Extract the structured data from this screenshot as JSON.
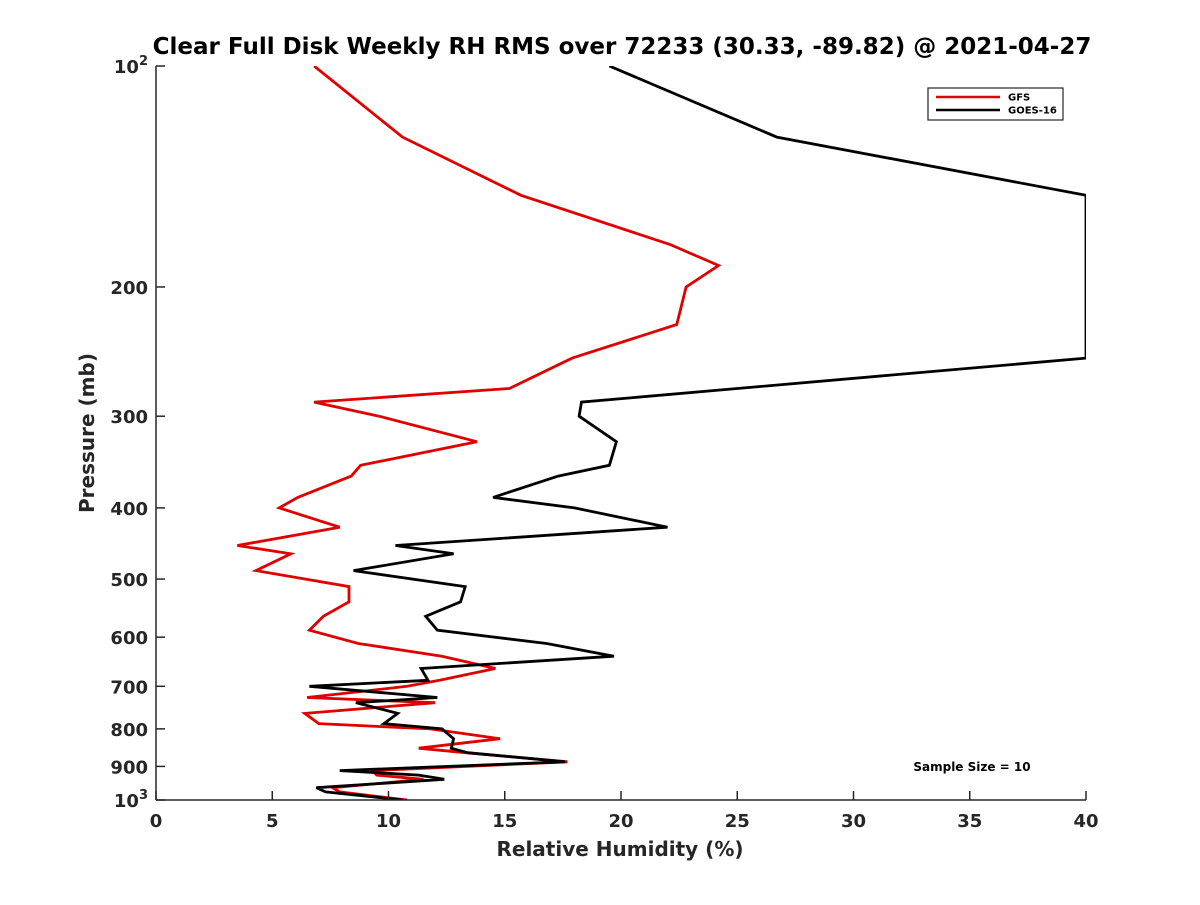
{
  "chart_data": {
    "type": "line",
    "title": "Clear Full Disk Weekly RH RMS over 72233 (30.33, -89.82) @ 2021-04-27",
    "xlabel": "Relative Humidity (%)",
    "ylabel": "Pressure (mb)",
    "xlim": [
      0,
      40
    ],
    "ylim": [
      100,
      1000
    ],
    "y_scale": "log",
    "y_reversed": true,
    "x_ticks": [
      "0",
      "5",
      "10",
      "15",
      "20",
      "25",
      "30",
      "35",
      "40"
    ],
    "y_ticks": [
      {
        "value": 100,
        "base": "10",
        "exp": "2"
      },
      {
        "value": 200,
        "label": "200"
      },
      {
        "value": 300,
        "label": "300"
      },
      {
        "value": 400,
        "label": "400"
      },
      {
        "value": 500,
        "label": "500"
      },
      {
        "value": 600,
        "label": "600"
      },
      {
        "value": 700,
        "label": "700"
      },
      {
        "value": 800,
        "label": "800"
      },
      {
        "value": 900,
        "label": "900"
      },
      {
        "value": 1000,
        "base": "10",
        "exp": "3"
      }
    ],
    "legend_position": "top-right",
    "annotation": "Sample Size = 10",
    "series": [
      {
        "name": "GFS",
        "color": "#e00000",
        "points": [
          [
            6.8,
            100
          ],
          [
            10.6,
            125
          ],
          [
            15.7,
            150
          ],
          [
            22.1,
            175
          ],
          [
            24.2,
            187
          ],
          [
            22.8,
            200
          ],
          [
            22.4,
            225
          ],
          [
            17.9,
            250
          ],
          [
            15.2,
            275
          ],
          [
            6.8,
            287
          ],
          [
            9.6,
            300
          ],
          [
            13.8,
            325
          ],
          [
            8.8,
            350
          ],
          [
            8.4,
            362
          ],
          [
            6.1,
            387
          ],
          [
            5.3,
            400
          ],
          [
            7.9,
            425
          ],
          [
            3.5,
            450
          ],
          [
            5.8,
            462
          ],
          [
            4.3,
            487
          ],
          [
            8.3,
            512
          ],
          [
            8.3,
            537
          ],
          [
            7.2,
            562
          ],
          [
            6.6,
            587
          ],
          [
            8.7,
            612
          ],
          [
            12.3,
            637
          ],
          [
            14.6,
            662
          ],
          [
            12.2,
            687
          ],
          [
            10.8,
            700
          ],
          [
            6.5,
            725
          ],
          [
            12.0,
            737
          ],
          [
            6.4,
            762
          ],
          [
            7.0,
            787
          ],
          [
            11.8,
            800
          ],
          [
            14.8,
            825
          ],
          [
            11.3,
            850
          ],
          [
            13.3,
            862
          ],
          [
            17.7,
            887
          ],
          [
            9.3,
            912
          ],
          [
            9.5,
            925
          ],
          [
            11.5,
            937
          ],
          [
            7.6,
            962
          ],
          [
            7.9,
            975
          ],
          [
            10.8,
            1000
          ]
        ]
      },
      {
        "name": "GOES-16",
        "color": "#000000",
        "points": [
          [
            19.5,
            100
          ],
          [
            26.7,
            125
          ],
          [
            40.0,
            150
          ],
          [
            40.0,
            250
          ],
          [
            18.3,
            287
          ],
          [
            18.2,
            300
          ],
          [
            19.8,
            325
          ],
          [
            19.5,
            350
          ],
          [
            17.3,
            362
          ],
          [
            14.5,
            387
          ],
          [
            18.0,
            400
          ],
          [
            22.0,
            425
          ],
          [
            10.3,
            450
          ],
          [
            12.8,
            462
          ],
          [
            8.5,
            487
          ],
          [
            13.3,
            512
          ],
          [
            13.1,
            537
          ],
          [
            11.6,
            562
          ],
          [
            12.1,
            587
          ],
          [
            16.8,
            612
          ],
          [
            19.7,
            637
          ],
          [
            11.4,
            662
          ],
          [
            11.7,
            687
          ],
          [
            6.6,
            700
          ],
          [
            12.1,
            725
          ],
          [
            8.6,
            737
          ],
          [
            10.4,
            762
          ],
          [
            9.8,
            787
          ],
          [
            12.3,
            800
          ],
          [
            12.8,
            825
          ],
          [
            12.7,
            850
          ],
          [
            13.4,
            862
          ],
          [
            17.6,
            887
          ],
          [
            7.9,
            912
          ],
          [
            11.3,
            925
          ],
          [
            12.4,
            937
          ],
          [
            6.9,
            962
          ],
          [
            7.3,
            975
          ],
          [
            10.6,
            1000
          ]
        ]
      }
    ]
  }
}
